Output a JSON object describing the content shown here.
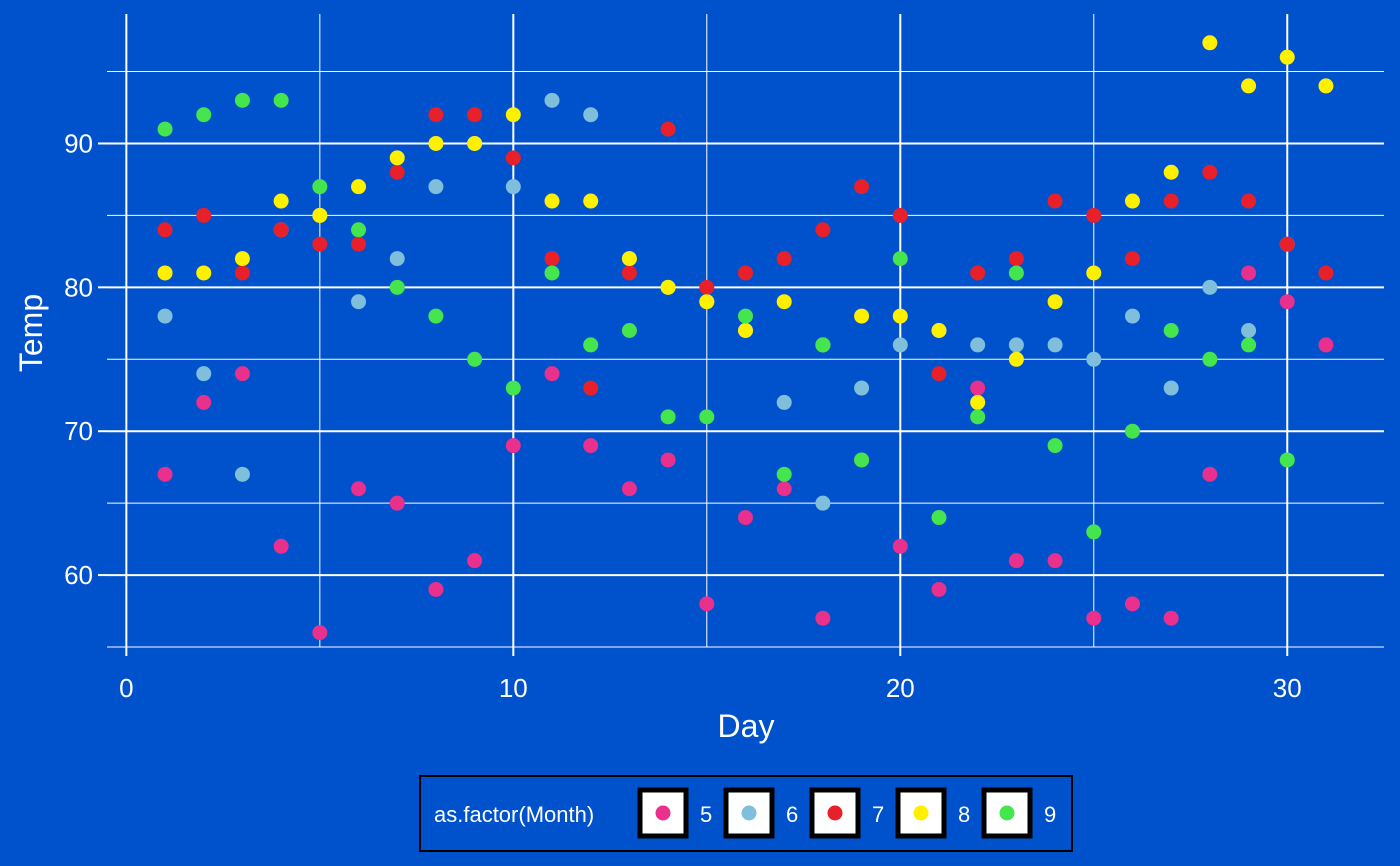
{
  "chart_data": {
    "type": "scatter",
    "title": "",
    "xlabel": "Day",
    "ylabel": "Temp",
    "xlim": [
      -0.5,
      32.5
    ],
    "ylim": [
      55,
      99
    ],
    "x_ticks": [
      0,
      10,
      20,
      30
    ],
    "y_ticks": [
      60,
      70,
      80,
      90
    ],
    "grid": true,
    "legend": {
      "title": "as.factor(Month)",
      "position": "bottom"
    },
    "series": [
      {
        "name": "5",
        "color": "#E8308C",
        "x": [
          1,
          2,
          3,
          4,
          5,
          6,
          7,
          8,
          9,
          10,
          11,
          12,
          13,
          14,
          15,
          16,
          17,
          18,
          19,
          20,
          21,
          22,
          23,
          24,
          25,
          26,
          27,
          28,
          29,
          30,
          31
        ],
        "y": [
          67,
          72,
          74,
          62,
          56,
          66,
          65,
          59,
          61,
          69,
          74,
          69,
          66,
          68,
          58,
          64,
          66,
          57,
          68,
          62,
          59,
          73,
          61,
          61,
          57,
          58,
          57,
          67,
          81,
          79,
          76
        ]
      },
      {
        "name": "6",
        "color": "#7FBFDB",
        "x": [
          1,
          2,
          3,
          4,
          5,
          6,
          7,
          8,
          9,
          10,
          11,
          12,
          13,
          14,
          15,
          16,
          17,
          18,
          19,
          20,
          21,
          22,
          23,
          24,
          25,
          26,
          27,
          28,
          29,
          30
        ],
        "y": [
          78,
          74,
          67,
          84,
          85,
          79,
          82,
          87,
          90,
          87,
          93,
          92,
          82,
          80,
          79,
          77,
          72,
          65,
          73,
          76,
          77,
          76,
          76,
          76,
          75,
          78,
          73,
          80,
          77,
          83
        ]
      },
      {
        "name": "7",
        "color": "#E8202A",
        "x": [
          1,
          2,
          3,
          4,
          5,
          6,
          7,
          8,
          9,
          10,
          11,
          12,
          13,
          14,
          15,
          16,
          17,
          18,
          19,
          20,
          21,
          22,
          23,
          24,
          25,
          26,
          27,
          28,
          29,
          30,
          31
        ],
        "y": [
          84,
          85,
          81,
          84,
          83,
          83,
          88,
          92,
          92,
          89,
          82,
          73,
          81,
          91,
          80,
          81,
          82,
          84,
          87,
          85,
          74,
          81,
          82,
          86,
          85,
          82,
          86,
          88,
          86,
          83,
          81
        ]
      },
      {
        "name": "8",
        "color": "#FFF000",
        "x": [
          1,
          2,
          3,
          4,
          5,
          6,
          7,
          8,
          9,
          10,
          11,
          12,
          13,
          14,
          15,
          16,
          17,
          18,
          19,
          20,
          21,
          22,
          23,
          24,
          25,
          26,
          27,
          28,
          29,
          30,
          31
        ],
        "y": [
          81,
          81,
          82,
          86,
          85,
          87,
          89,
          90,
          90,
          92,
          86,
          86,
          82,
          80,
          79,
          77,
          79,
          76,
          78,
          78,
          77,
          72,
          75,
          79,
          81,
          86,
          88,
          97,
          94,
          96,
          94
        ]
      },
      {
        "name": "9",
        "color": "#44E54D",
        "x": [
          1,
          2,
          3,
          4,
          5,
          6,
          7,
          8,
          9,
          10,
          11,
          12,
          13,
          14,
          15,
          16,
          17,
          18,
          19,
          20,
          21,
          22,
          23,
          24,
          25,
          26,
          27,
          28,
          29,
          30
        ],
        "y": [
          91,
          92,
          93,
          93,
          87,
          84,
          80,
          78,
          75,
          73,
          81,
          76,
          77,
          71,
          71,
          78,
          67,
          76,
          68,
          82,
          64,
          71,
          81,
          69,
          63,
          70,
          77,
          75,
          76,
          68
        ]
      }
    ]
  }
}
